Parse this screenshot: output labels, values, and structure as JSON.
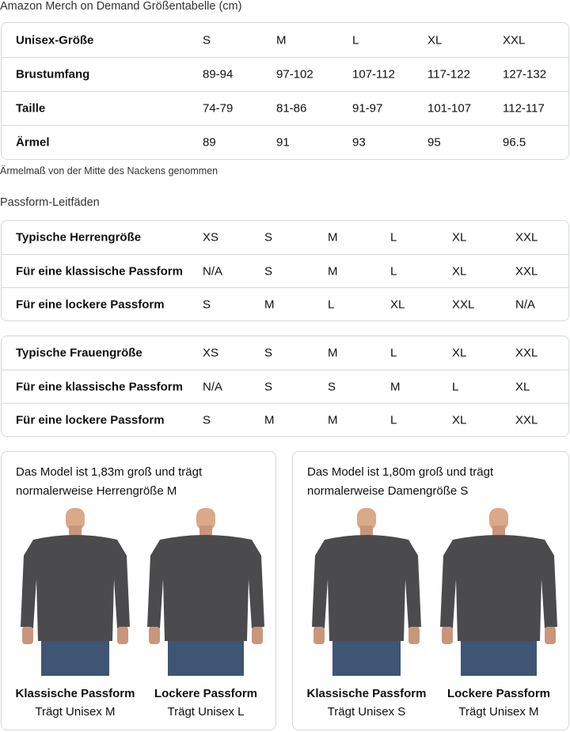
{
  "title": "Amazon Merch on Demand Größentabelle (cm)",
  "size_table": {
    "rows": [
      [
        "Unisex-Größe",
        "S",
        "M",
        "L",
        "XL",
        "XXL"
      ],
      [
        "Brustumfang",
        "89-94",
        "97-102",
        "107-112",
        "117-122",
        "127-132"
      ],
      [
        "Taille",
        "74-79",
        "81-86",
        "91-97",
        "101-107",
        "112-117"
      ],
      [
        "Ärmel",
        "89",
        "91",
        "93",
        "95",
        "96.5"
      ]
    ]
  },
  "note": "Ärmelmaß von der Mitte des Nackens genommen",
  "fit_title": "Passform-Leitfäden",
  "men_table": {
    "rows": [
      [
        "Typische Herrengröße",
        "XS",
        "S",
        "M",
        "L",
        "XL",
        "XXL"
      ],
      [
        "Für eine klassische Passform",
        "N/A",
        "S",
        "M",
        "L",
        "XL",
        "XXL"
      ],
      [
        "Für eine lockere Passform",
        "S",
        "M",
        "L",
        "XL",
        "XXL",
        "N/A"
      ]
    ]
  },
  "women_table": {
    "rows": [
      [
        "Typische Frauengröße",
        "XS",
        "S",
        "M",
        "L",
        "XL",
        "XXL"
      ],
      [
        "Für eine klassische Passform",
        "N/A",
        "S",
        "S",
        "M",
        "L",
        "XL"
      ],
      [
        "Für eine lockere Passform",
        "S",
        "M",
        "M",
        "L",
        "XL",
        "XXL"
      ]
    ]
  },
  "cards": [
    {
      "caption": "Das Model ist 1,83m groß und trägt normalerweise Herrengröße M",
      "photos": [
        {
          "fit": "Klassische Passform",
          "wears": "Trägt Unisex M"
        },
        {
          "fit": "Lockere Passform",
          "wears": "Trägt Unisex L"
        }
      ]
    },
    {
      "caption": "Das Model ist 1,80m groß und trägt normalerweise Damengröße S",
      "photos": [
        {
          "fit": "Klassische Passform",
          "wears": "Trägt Unisex S"
        },
        {
          "fit": "Lockere Passform",
          "wears": "Trägt Unisex M"
        }
      ]
    }
  ],
  "colors": {
    "border": "#d5d9d9",
    "sweater": "#4b4b4e",
    "jeans": "#3e5573"
  }
}
